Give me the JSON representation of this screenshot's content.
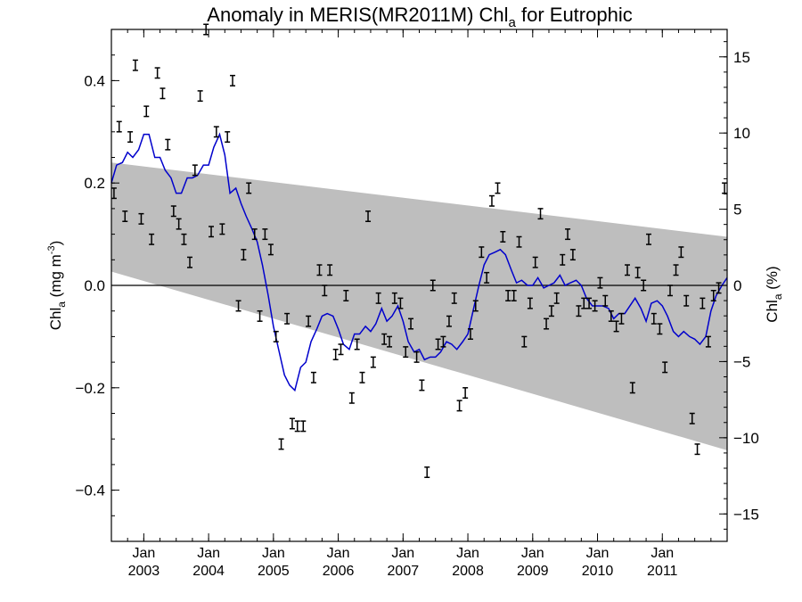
{
  "chart_data": {
    "type": "scatter",
    "title_main": "Anomaly in MERIS(MR2011M) Chl",
    "title_sub": "a",
    "title_tail": " for Eutrophic",
    "ylabel_left": {
      "main": "Chl",
      "sub": "a",
      "unit": " (mg m",
      "sup": "-3",
      "close": ")"
    },
    "ylabel_right": {
      "main": "Chl",
      "sub": "a",
      "unit": " (%)"
    },
    "xlim": [
      2002.5,
      2012.0
    ],
    "ylim_left": [
      -0.5,
      0.5
    ],
    "ylim_right": [
      -16.8,
      16.8
    ],
    "x_ticks": [
      {
        "x": 2003.0,
        "month": "Jan",
        "year": "2003"
      },
      {
        "x": 2004.0,
        "month": "Jan",
        "year": "2004"
      },
      {
        "x": 2005.0,
        "month": "Jan",
        "year": "2005"
      },
      {
        "x": 2006.0,
        "month": "Jan",
        "year": "2006"
      },
      {
        "x": 2007.0,
        "month": "Jan",
        "year": "2007"
      },
      {
        "x": 2008.0,
        "month": "Jan",
        "year": "2008"
      },
      {
        "x": 2009.0,
        "month": "Jan",
        "year": "2009"
      },
      {
        "x": 2010.0,
        "month": "Jan",
        "year": "2010"
      },
      {
        "x": 2011.0,
        "month": "Jan",
        "year": "2011"
      }
    ],
    "y_ticks_left": [
      {
        "v": 0.4,
        "label": "0.4"
      },
      {
        "v": 0.2,
        "label": "0.2"
      },
      {
        "v": 0.0,
        "label": "0.0"
      },
      {
        "v": -0.2,
        "label": "−0.2"
      },
      {
        "v": -0.4,
        "label": "−0.4"
      }
    ],
    "y_ticks_right": [
      {
        "v": 15,
        "label": "15"
      },
      {
        "v": 10,
        "label": "10"
      },
      {
        "v": 5,
        "label": "5"
      },
      {
        "v": 0,
        "label": "0"
      },
      {
        "v": -5,
        "label": "−5"
      },
      {
        "v": -10,
        "label": "−10"
      },
      {
        "v": -15,
        "label": "−15"
      }
    ],
    "uncertainty_band": {
      "upper": [
        [
          2002.5,
          0.24
        ],
        [
          2012.0,
          0.095
        ]
      ],
      "lower": [
        [
          2002.5,
          0.027
        ],
        [
          2012.0,
          -0.322
        ]
      ],
      "color": "#bebebe"
    },
    "zero_line": 0.0,
    "points": [
      [
        2002.54,
        0.18
      ],
      [
        2002.62,
        0.31
      ],
      [
        2002.71,
        0.135
      ],
      [
        2002.79,
        0.29
      ],
      [
        2002.87,
        0.43
      ],
      [
        2002.96,
        0.13
      ],
      [
        2003.04,
        0.34
      ],
      [
        2003.12,
        0.09
      ],
      [
        2003.21,
        0.415
      ],
      [
        2003.29,
        0.375
      ],
      [
        2003.37,
        0.275
      ],
      [
        2003.46,
        0.145
      ],
      [
        2003.54,
        0.12
      ],
      [
        2003.62,
        0.09
      ],
      [
        2003.71,
        0.045
      ],
      [
        2003.79,
        0.225
      ],
      [
        2003.87,
        0.37
      ],
      [
        2003.96,
        0.5
      ],
      [
        2004.04,
        0.105
      ],
      [
        2004.12,
        0.3
      ],
      [
        2004.21,
        0.11
      ],
      [
        2004.29,
        0.29
      ],
      [
        2004.37,
        0.4
      ],
      [
        2004.46,
        -0.04
      ],
      [
        2004.54,
        0.06
      ],
      [
        2004.62,
        0.19
      ],
      [
        2004.71,
        0.1
      ],
      [
        2004.79,
        -0.06
      ],
      [
        2004.87,
        0.1
      ],
      [
        2004.96,
        0.07
      ],
      [
        2005.04,
        -0.1
      ],
      [
        2005.12,
        -0.31
      ],
      [
        2005.21,
        -0.065
      ],
      [
        2005.29,
        -0.27
      ],
      [
        2005.37,
        -0.275
      ],
      [
        2005.46,
        -0.275
      ],
      [
        2005.54,
        -0.07
      ],
      [
        2005.62,
        -0.18
      ],
      [
        2005.71,
        0.03
      ],
      [
        2005.79,
        -0.01
      ],
      [
        2005.87,
        0.03
      ],
      [
        2005.96,
        -0.135
      ],
      [
        2006.04,
        -0.125
      ],
      [
        2006.12,
        -0.02
      ],
      [
        2006.21,
        -0.22
      ],
      [
        2006.29,
        -0.115
      ],
      [
        2006.37,
        -0.18
      ],
      [
        2006.46,
        0.135
      ],
      [
        2006.54,
        -0.15
      ],
      [
        2006.62,
        -0.025
      ],
      [
        2006.71,
        -0.105
      ],
      [
        2006.79,
        -0.11
      ],
      [
        2006.87,
        -0.025
      ],
      [
        2006.96,
        -0.035
      ],
      [
        2007.04,
        -0.13
      ],
      [
        2007.12,
        -0.075
      ],
      [
        2007.21,
        -0.14
      ],
      [
        2007.29,
        -0.195
      ],
      [
        2007.37,
        -0.365
      ],
      [
        2007.46,
        0.0
      ],
      [
        2007.54,
        -0.115
      ],
      [
        2007.62,
        -0.11
      ],
      [
        2007.71,
        -0.07
      ],
      [
        2007.79,
        -0.025
      ],
      [
        2007.87,
        -0.235
      ],
      [
        2007.96,
        -0.21
      ],
      [
        2008.04,
        -0.095
      ],
      [
        2008.12,
        -0.04
      ],
      [
        2008.21,
        0.065
      ],
      [
        2008.29,
        0.015
      ],
      [
        2008.37,
        0.165
      ],
      [
        2008.46,
        0.19
      ],
      [
        2008.54,
        0.095
      ],
      [
        2008.62,
        -0.02
      ],
      [
        2008.71,
        -0.02
      ],
      [
        2008.79,
        0.085
      ],
      [
        2008.87,
        -0.11
      ],
      [
        2008.96,
        -0.035
      ],
      [
        2009.04,
        0.045
      ],
      [
        2009.12,
        0.14
      ],
      [
        2009.21,
        -0.075
      ],
      [
        2009.29,
        -0.05
      ],
      [
        2009.37,
        -0.025
      ],
      [
        2009.46,
        0.05
      ],
      [
        2009.54,
        0.1
      ],
      [
        2009.62,
        0.06
      ],
      [
        2009.71,
        -0.05
      ],
      [
        2009.79,
        -0.035
      ],
      [
        2009.87,
        -0.035
      ],
      [
        2009.96,
        -0.04
      ],
      [
        2010.04,
        0.005
      ],
      [
        2010.12,
        -0.03
      ],
      [
        2010.21,
        -0.06
      ],
      [
        2010.29,
        -0.08
      ],
      [
        2010.37,
        -0.065
      ],
      [
        2010.46,
        0.03
      ],
      [
        2010.54,
        -0.2
      ],
      [
        2010.62,
        0.025
      ],
      [
        2010.71,
        0.0
      ],
      [
        2010.79,
        0.09
      ],
      [
        2010.87,
        -0.065
      ],
      [
        2010.96,
        -0.085
      ],
      [
        2011.04,
        -0.16
      ],
      [
        2011.12,
        -0.01
      ],
      [
        2011.21,
        0.03
      ],
      [
        2011.29,
        0.065
      ],
      [
        2011.37,
        -0.03
      ],
      [
        2011.46,
        -0.26
      ],
      [
        2011.54,
        -0.32
      ],
      [
        2011.62,
        -0.035
      ],
      [
        2011.71,
        -0.11
      ],
      [
        2011.79,
        -0.02
      ],
      [
        2011.87,
        -0.005
      ],
      [
        2011.96,
        0.19
      ]
    ],
    "error_half": 0.01,
    "smoothed_line": {
      "color": "#0000cc",
      "points": [
        [
          2002.5,
          0.2
        ],
        [
          2002.58,
          0.235
        ],
        [
          2002.67,
          0.24
        ],
        [
          2002.75,
          0.26
        ],
        [
          2002.83,
          0.25
        ],
        [
          2002.92,
          0.265
        ],
        [
          2003.0,
          0.295
        ],
        [
          2003.08,
          0.295
        ],
        [
          2003.17,
          0.25
        ],
        [
          2003.25,
          0.25
        ],
        [
          2003.33,
          0.225
        ],
        [
          2003.42,
          0.21
        ],
        [
          2003.5,
          0.18
        ],
        [
          2003.58,
          0.18
        ],
        [
          2003.67,
          0.21
        ],
        [
          2003.75,
          0.21
        ],
        [
          2003.83,
          0.215
        ],
        [
          2003.92,
          0.235
        ],
        [
          2004.0,
          0.235
        ],
        [
          2004.08,
          0.27
        ],
        [
          2004.17,
          0.295
        ],
        [
          2004.25,
          0.255
        ],
        [
          2004.33,
          0.18
        ],
        [
          2004.42,
          0.19
        ],
        [
          2004.5,
          0.16
        ],
        [
          2004.58,
          0.135
        ],
        [
          2004.67,
          0.11
        ],
        [
          2004.75,
          0.085
        ],
        [
          2004.83,
          0.04
        ],
        [
          2004.92,
          -0.02
        ],
        [
          2005.0,
          -0.08
        ],
        [
          2005.08,
          -0.125
        ],
        [
          2005.17,
          -0.175
        ],
        [
          2005.25,
          -0.195
        ],
        [
          2005.33,
          -0.205
        ],
        [
          2005.42,
          -0.16
        ],
        [
          2005.5,
          -0.15
        ],
        [
          2005.58,
          -0.11
        ],
        [
          2005.67,
          -0.085
        ],
        [
          2005.75,
          -0.06
        ],
        [
          2005.83,
          -0.055
        ],
        [
          2005.92,
          -0.06
        ],
        [
          2006.0,
          -0.085
        ],
        [
          2006.08,
          -0.115
        ],
        [
          2006.17,
          -0.125
        ],
        [
          2006.25,
          -0.095
        ],
        [
          2006.33,
          -0.095
        ],
        [
          2006.42,
          -0.08
        ],
        [
          2006.5,
          -0.09
        ],
        [
          2006.58,
          -0.075
        ],
        [
          2006.67,
          -0.045
        ],
        [
          2006.75,
          -0.07
        ],
        [
          2006.83,
          -0.06
        ],
        [
          2006.92,
          -0.04
        ],
        [
          2007.0,
          -0.07
        ],
        [
          2007.08,
          -0.11
        ],
        [
          2007.17,
          -0.13
        ],
        [
          2007.25,
          -0.125
        ],
        [
          2007.33,
          -0.145
        ],
        [
          2007.42,
          -0.14
        ],
        [
          2007.5,
          -0.14
        ],
        [
          2007.58,
          -0.13
        ],
        [
          2007.67,
          -0.11
        ],
        [
          2007.75,
          -0.115
        ],
        [
          2007.83,
          -0.125
        ],
        [
          2007.92,
          -0.11
        ],
        [
          2008.0,
          -0.095
        ],
        [
          2008.08,
          -0.05
        ],
        [
          2008.17,
          0.0
        ],
        [
          2008.25,
          0.04
        ],
        [
          2008.33,
          0.06
        ],
        [
          2008.42,
          0.065
        ],
        [
          2008.5,
          0.07
        ],
        [
          2008.58,
          0.06
        ],
        [
          2008.67,
          0.03
        ],
        [
          2008.75,
          0.005
        ],
        [
          2008.83,
          0.01
        ],
        [
          2008.92,
          0.0
        ],
        [
          2009.0,
          0.0
        ],
        [
          2009.08,
          0.015
        ],
        [
          2009.17,
          -0.005
        ],
        [
          2009.25,
          0.0
        ],
        [
          2009.33,
          0.005
        ],
        [
          2009.42,
          0.02
        ],
        [
          2009.5,
          0.0
        ],
        [
          2009.58,
          0.005
        ],
        [
          2009.67,
          0.01
        ],
        [
          2009.75,
          0.0
        ],
        [
          2009.83,
          -0.025
        ],
        [
          2009.92,
          -0.04
        ],
        [
          2010.0,
          -0.04
        ],
        [
          2010.08,
          -0.04
        ],
        [
          2010.17,
          -0.045
        ],
        [
          2010.25,
          -0.065
        ],
        [
          2010.33,
          -0.055
        ],
        [
          2010.42,
          -0.055
        ],
        [
          2010.5,
          -0.04
        ],
        [
          2010.58,
          -0.025
        ],
        [
          2010.67,
          -0.045
        ],
        [
          2010.75,
          -0.07
        ],
        [
          2010.83,
          -0.035
        ],
        [
          2010.92,
          -0.03
        ],
        [
          2011.0,
          -0.04
        ],
        [
          2011.08,
          -0.06
        ],
        [
          2011.17,
          -0.09
        ],
        [
          2011.25,
          -0.1
        ],
        [
          2011.33,
          -0.09
        ],
        [
          2011.42,
          -0.1
        ],
        [
          2011.5,
          -0.105
        ],
        [
          2011.58,
          -0.115
        ],
        [
          2011.67,
          -0.1
        ],
        [
          2011.75,
          -0.05
        ],
        [
          2011.83,
          -0.02
        ],
        [
          2011.92,
          0.0
        ],
        [
          2012.0,
          0.015
        ]
      ]
    }
  }
}
